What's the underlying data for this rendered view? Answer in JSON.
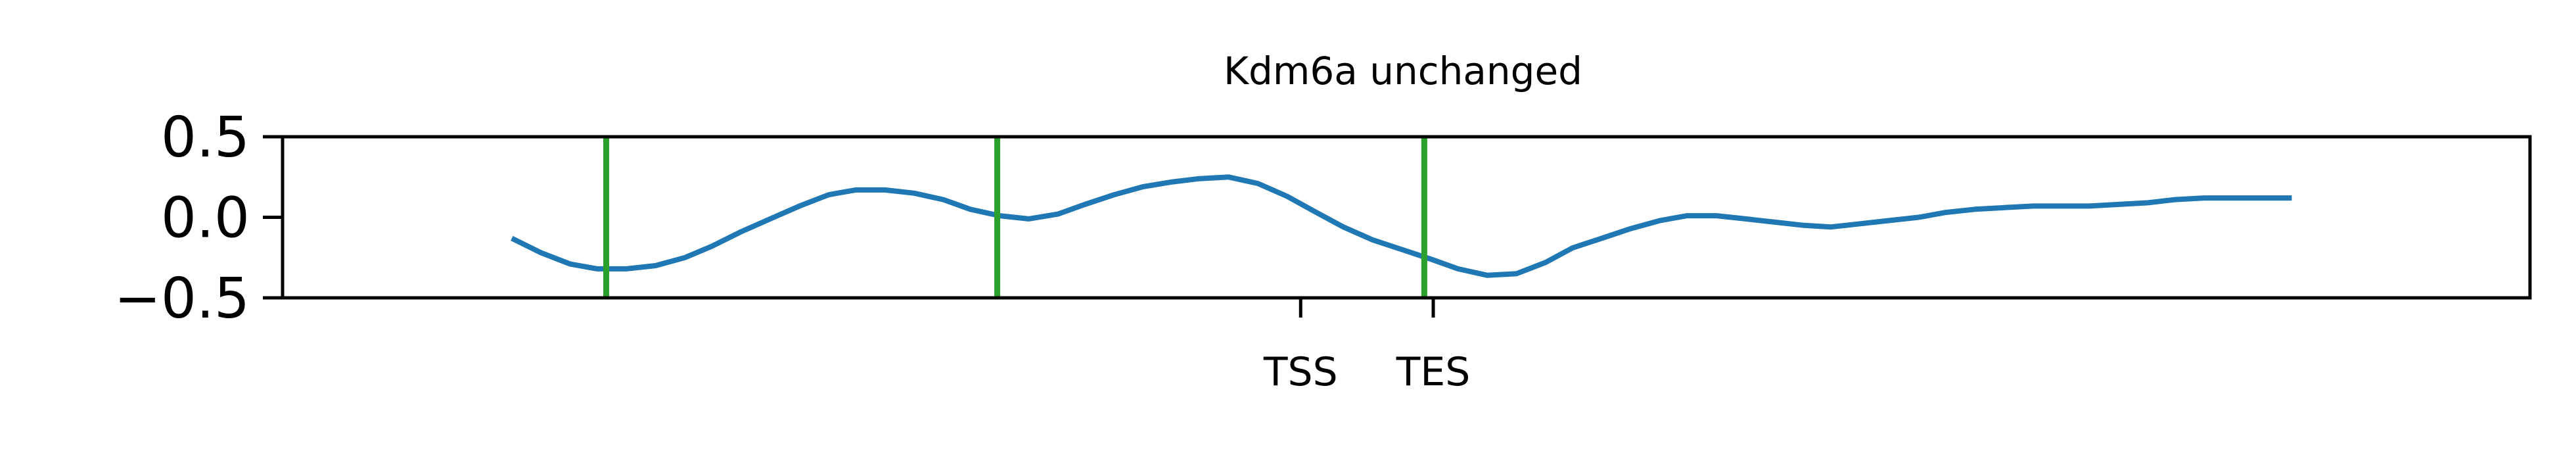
{
  "chart_data": {
    "type": "line",
    "title": "Kdm6a unchanged",
    "xlabel": "",
    "ylabel": "",
    "xlim": [
      0,
      100
    ],
    "ylim": [
      -0.5,
      0.5
    ],
    "yticks": [
      {
        "value": 0.5,
        "label": "0.5"
      },
      {
        "value": 0.0,
        "label": "0.0"
      },
      {
        "value": -0.5,
        "label": "−0.5"
      }
    ],
    "xticks": [
      {
        "value": 45.3,
        "label": "TSS"
      },
      {
        "value": 51.2,
        "label": "TES"
      }
    ],
    "grid": false,
    "colors": {
      "line": "#1f77b4",
      "vlines": "#2ca02c",
      "axes": "#000000"
    },
    "vlines": [
      14.4,
      31.8,
      50.8
    ],
    "series": [
      {
        "x": [
          10.2,
          11.5,
          12.8,
          14.0,
          15.3,
          16.6,
          17.9,
          19.1,
          20.4,
          21.7,
          23.0,
          24.3,
          25.5,
          26.8,
          28.1,
          29.4,
          30.6,
          31.9,
          33.2,
          34.5,
          35.7,
          37.0,
          38.3,
          39.6,
          40.8,
          42.1,
          43.4,
          44.7,
          46.0,
          47.2,
          48.5,
          49.8,
          51.1,
          52.3,
          53.6,
          54.9,
          56.2,
          57.4,
          58.7,
          60.0,
          61.3,
          62.5,
          63.8,
          65.1,
          66.4,
          67.7,
          68.9,
          70.2,
          71.5,
          72.8,
          74.0,
          75.3,
          76.6,
          77.9,
          79.1,
          80.4,
          81.7,
          83.0,
          84.2,
          85.5,
          86.8,
          88.1,
          89.4
        ],
        "y": [
          -0.13,
          -0.22,
          -0.29,
          -0.32,
          -0.32,
          -0.3,
          -0.25,
          -0.18,
          -0.09,
          -0.01,
          0.07,
          0.14,
          0.17,
          0.17,
          0.15,
          0.11,
          0.05,
          0.01,
          -0.01,
          0.02,
          0.08,
          0.14,
          0.19,
          0.22,
          0.24,
          0.25,
          0.21,
          0.13,
          0.03,
          -0.06,
          -0.14,
          -0.2,
          -0.26,
          -0.32,
          -0.36,
          -0.35,
          -0.28,
          -0.19,
          -0.13,
          -0.07,
          -0.02,
          0.01,
          0.01,
          -0.01,
          -0.03,
          -0.05,
          -0.06,
          -0.04,
          -0.02,
          0.0,
          0.03,
          0.05,
          0.06,
          0.07,
          0.07,
          0.07,
          0.08,
          0.09,
          0.11,
          0.12,
          0.12,
          0.12,
          0.12
        ]
      }
    ]
  }
}
